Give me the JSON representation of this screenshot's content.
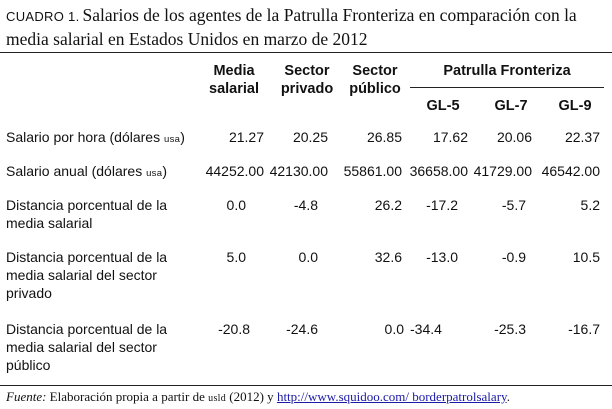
{
  "caption": {
    "label": "CUADRO 1.",
    "title": "Salarios de los agentes de la Patrulla Fronteriza en comparación con la media salarial en Estados Unidos en marzo de 2012"
  },
  "headers": {
    "media_l1": "Media",
    "media_l2": "salarial",
    "privado_l1": "Sector",
    "privado_l2": "privado",
    "publico_l1": "Sector",
    "publico_l2": "público",
    "patrulla": "Patrulla Fronteriza",
    "gl5": "GL-5",
    "gl7": "GL-7",
    "gl9": "GL-9"
  },
  "rows": [
    {
      "label": "Salario por hora (dólares ",
      "label_sc": "usa",
      "label_end": ")",
      "values": [
        "21.27",
        "20.25",
        "26.85",
        "17.62",
        "20.06",
        "22.37"
      ]
    },
    {
      "label": "Salario anual (dólares ",
      "label_sc": "usa",
      "label_end": ")",
      "values": [
        "44252.00",
        "42130.00",
        "55861.00",
        "36658.00",
        "41729.00",
        "46542.00"
      ]
    },
    {
      "label": "Distancia porcentual de la media salarial",
      "values": [
        "0.0",
        "-4.8",
        "26.2",
        "-17.2",
        "-5.7",
        "5.2"
      ]
    },
    {
      "label": "Distancia porcentual de la media salarial del sector privado",
      "values": [
        "5.0",
        "0.0",
        "32.6",
        "-13.0",
        "-0.9",
        "10.5"
      ]
    },
    {
      "label": "Distancia porcentual de la media salarial del sector público",
      "values": [
        "-20.8",
        "-24.6",
        "0.0",
        "-34.4",
        "-25.3",
        "-16.7"
      ]
    }
  ],
  "source": {
    "prefix": "Fuente:",
    "text1": " Elaboración propia a partir de ",
    "org": "usld",
    "text2": " (2012) y ",
    "link": "http://www.squidoo.com/ borderpatrolsalary",
    "end": "."
  }
}
